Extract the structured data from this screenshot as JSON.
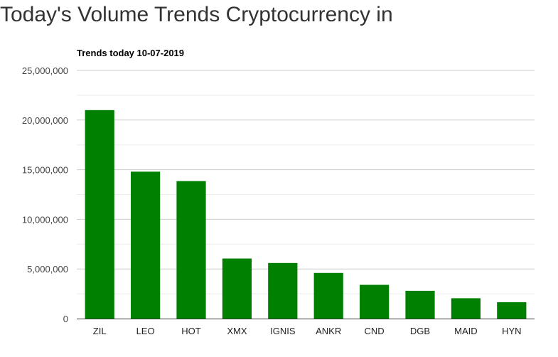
{
  "page": {
    "title": "Today's Volume Trends Cryptocurrency in"
  },
  "chart_data": {
    "type": "bar",
    "title": "Trends today 10-07-2019",
    "xlabel": "",
    "ylabel": "",
    "categories": [
      "ZIL",
      "LEO",
      "HOT",
      "XMX",
      "IGNIS",
      "ANKR",
      "CND",
      "DGB",
      "MAID",
      "HYN"
    ],
    "values": [
      21000000,
      14800000,
      13850000,
      6050000,
      5600000,
      4600000,
      3400000,
      2800000,
      2050000,
      1650000
    ],
    "ylim": [
      0,
      25000000
    ],
    "yticks": [
      0,
      5000000,
      10000000,
      15000000,
      20000000,
      25000000
    ],
    "ytick_labels": [
      "0",
      "5,000,000",
      "10,000,000",
      "15,000,000",
      "20,000,000",
      "25,000,000"
    ],
    "grid": true,
    "legend": "none",
    "colors": {
      "bar": "#008000",
      "gridline": "#cccccc",
      "minor_gridline": "#ebebeb",
      "axis": "#333333"
    }
  }
}
